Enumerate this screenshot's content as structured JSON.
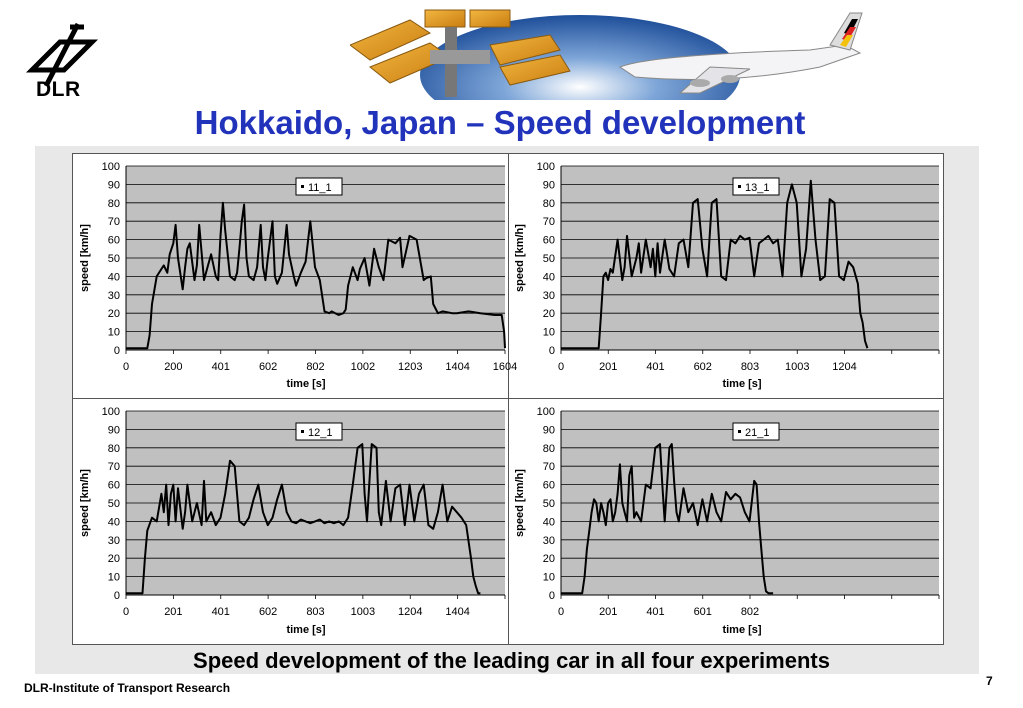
{
  "slide": {
    "logo_text": "DLR",
    "title": "Hokkaido, Japan – Speed development",
    "caption": "Speed development of the leading car in all four experiments",
    "footer": "DLR-Institute of Transport Research",
    "page_number": "7"
  },
  "colors": {
    "title": "#2233bb",
    "plot_bg": "#c0c0c0",
    "line": "#000000"
  },
  "chart_data": [
    {
      "type": "line",
      "legend": "11_1",
      "xlabel": "time [s]",
      "ylabel": "speed [km/h]",
      "x_ticks": [
        "0",
        "200",
        "401",
        "602",
        "802",
        "1002",
        "1203",
        "1404",
        "1604"
      ],
      "xlim": [
        0,
        1604
      ],
      "ylim": [
        0,
        100
      ],
      "y_ticks": [
        "0",
        "10",
        "20",
        "30",
        "40",
        "50",
        "60",
        "70",
        "80",
        "90",
        "100"
      ],
      "grid": true,
      "x": [
        0,
        90,
        100,
        110,
        130,
        150,
        160,
        175,
        185,
        200,
        210,
        220,
        240,
        250,
        260,
        270,
        290,
        300,
        310,
        330,
        345,
        360,
        380,
        390,
        400,
        410,
        420,
        440,
        460,
        470,
        480,
        490,
        500,
        510,
        520,
        540,
        555,
        570,
        580,
        590,
        600,
        620,
        630,
        640,
        660,
        680,
        690,
        710,
        720,
        740,
        760,
        780,
        800,
        820,
        840,
        860,
        870,
        900,
        920,
        930,
        940,
        960,
        980,
        990,
        1010,
        1030,
        1050,
        1070,
        1090,
        1110,
        1140,
        1160,
        1170,
        1200,
        1230,
        1260,
        1270,
        1290,
        1300,
        1320,
        1340,
        1380,
        1400,
        1450,
        1500,
        1560,
        1590,
        1600,
        1604
      ],
      "y": [
        1,
        1,
        8,
        25,
        40,
        44,
        46,
        42,
        52,
        58,
        68,
        50,
        33,
        45,
        55,
        58,
        38,
        46,
        68,
        38,
        45,
        52,
        40,
        38,
        62,
        80,
        65,
        40,
        38,
        42,
        55,
        70,
        79,
        50,
        40,
        38,
        45,
        68,
        45,
        38,
        50,
        70,
        40,
        36,
        42,
        68,
        52,
        40,
        35,
        42,
        48,
        70,
        45,
        38,
        21,
        20,
        21,
        19,
        20,
        22,
        35,
        45,
        38,
        44,
        50,
        35,
        55,
        45,
        38,
        60,
        58,
        61,
        45,
        62,
        60,
        38,
        39,
        40,
        25,
        20,
        21,
        20,
        20,
        21,
        20,
        19,
        19,
        10,
        1
      ]
    },
    {
      "type": "line",
      "legend": "13_1",
      "xlabel": "time [s]",
      "ylabel": "speed [km/h]",
      "x_ticks": [
        "0",
        "201",
        "401",
        "602",
        "803",
        "1003",
        "1204"
      ],
      "xlim": [
        0,
        1604
      ],
      "ylim": [
        0,
        100
      ],
      "y_ticks": [
        "0",
        "10",
        "20",
        "30",
        "40",
        "50",
        "60",
        "70",
        "80",
        "90",
        "100"
      ],
      "grid": true,
      "x": [
        0,
        160,
        170,
        180,
        190,
        200,
        210,
        220,
        240,
        260,
        270,
        280,
        300,
        320,
        330,
        340,
        360,
        380,
        390,
        400,
        410,
        420,
        440,
        460,
        480,
        500,
        520,
        540,
        560,
        580,
        600,
        620,
        640,
        660,
        680,
        700,
        720,
        740,
        760,
        780,
        800,
        820,
        840,
        860,
        880,
        900,
        920,
        940,
        960,
        980,
        1000,
        1020,
        1040,
        1060,
        1080,
        1100,
        1120,
        1140,
        1160,
        1180,
        1200,
        1220,
        1240,
        1260,
        1270,
        1280,
        1290,
        1300
      ],
      "y": [
        1,
        1,
        20,
        40,
        42,
        38,
        44,
        42,
        60,
        38,
        45,
        62,
        40,
        50,
        58,
        42,
        60,
        45,
        55,
        40,
        58,
        42,
        60,
        44,
        40,
        58,
        60,
        45,
        80,
        82,
        55,
        40,
        80,
        82,
        40,
        38,
        60,
        58,
        62,
        60,
        61,
        40,
        58,
        60,
        62,
        58,
        60,
        40,
        80,
        90,
        80,
        40,
        55,
        92,
        60,
        38,
        40,
        82,
        80,
        40,
        38,
        48,
        45,
        36,
        20,
        15,
        5,
        1
      ]
    },
    {
      "type": "line",
      "legend": "12_1",
      "xlabel": "time [s]",
      "ylabel": "speed [km/h]",
      "x_ticks": [
        "0",
        "201",
        "401",
        "602",
        "803",
        "1003",
        "1204",
        "1404"
      ],
      "xlim": [
        0,
        1604
      ],
      "ylim": [
        0,
        100
      ],
      "y_ticks": [
        "0",
        "10",
        "20",
        "30",
        "40",
        "50",
        "60",
        "70",
        "80",
        "90",
        "100"
      ],
      "grid": true,
      "x": [
        0,
        70,
        80,
        90,
        110,
        130,
        150,
        160,
        170,
        180,
        190,
        200,
        210,
        220,
        240,
        250,
        260,
        280,
        300,
        320,
        330,
        340,
        360,
        380,
        400,
        420,
        440,
        460,
        480,
        500,
        520,
        540,
        560,
        580,
        600,
        620,
        640,
        660,
        680,
        700,
        720,
        740,
        760,
        780,
        800,
        820,
        840,
        860,
        880,
        900,
        920,
        940,
        960,
        980,
        1000,
        1010,
        1020,
        1040,
        1060,
        1070,
        1080,
        1100,
        1120,
        1140,
        1160,
        1180,
        1200,
        1220,
        1240,
        1260,
        1280,
        1300,
        1320,
        1340,
        1360,
        1380,
        1400,
        1420,
        1440,
        1460,
        1470,
        1480,
        1490,
        1500
      ],
      "y": [
        1,
        1,
        20,
        35,
        42,
        40,
        55,
        45,
        60,
        38,
        55,
        60,
        40,
        58,
        36,
        45,
        60,
        40,
        50,
        38,
        62,
        40,
        45,
        38,
        42,
        55,
        73,
        70,
        40,
        38,
        42,
        52,
        60,
        45,
        38,
        42,
        52,
        60,
        45,
        40,
        39,
        41,
        40,
        39,
        40,
        41,
        39,
        40,
        39,
        40,
        38,
        42,
        60,
        80,
        82,
        55,
        40,
        82,
        80,
        45,
        38,
        62,
        40,
        58,
        60,
        38,
        60,
        40,
        55,
        60,
        38,
        36,
        45,
        60,
        40,
        48,
        45,
        42,
        38,
        20,
        10,
        5,
        1,
        1
      ]
    },
    {
      "type": "line",
      "legend": "21_1",
      "xlabel": "time [s]",
      "ylabel": "speed [km/h]",
      "x_ticks": [
        "0",
        "201",
        "401",
        "601",
        "802"
      ],
      "xlim": [
        0,
        1604
      ],
      "ylim": [
        0,
        100
      ],
      "y_ticks": [
        "0",
        "10",
        "20",
        "30",
        "40",
        "50",
        "60",
        "70",
        "80",
        "90",
        "100"
      ],
      "grid": true,
      "x": [
        0,
        90,
        100,
        110,
        120,
        130,
        140,
        150,
        160,
        170,
        180,
        190,
        200,
        210,
        220,
        230,
        240,
        250,
        260,
        270,
        280,
        290,
        300,
        310,
        320,
        340,
        360,
        380,
        400,
        420,
        430,
        440,
        460,
        470,
        480,
        490,
        500,
        520,
        540,
        560,
        580,
        600,
        620,
        640,
        660,
        680,
        700,
        720,
        740,
        760,
        780,
        800,
        820,
        830,
        840,
        850,
        860,
        870,
        880,
        900
      ],
      "y": [
        1,
        1,
        10,
        25,
        35,
        45,
        52,
        50,
        40,
        50,
        45,
        38,
        50,
        52,
        40,
        45,
        55,
        71,
        50,
        45,
        40,
        65,
        70,
        42,
        45,
        40,
        60,
        58,
        80,
        82,
        60,
        40,
        80,
        82,
        62,
        45,
        40,
        58,
        45,
        50,
        38,
        52,
        40,
        55,
        45,
        40,
        56,
        52,
        55,
        53,
        45,
        40,
        62,
        60,
        40,
        25,
        10,
        2,
        1,
        1
      ]
    }
  ]
}
